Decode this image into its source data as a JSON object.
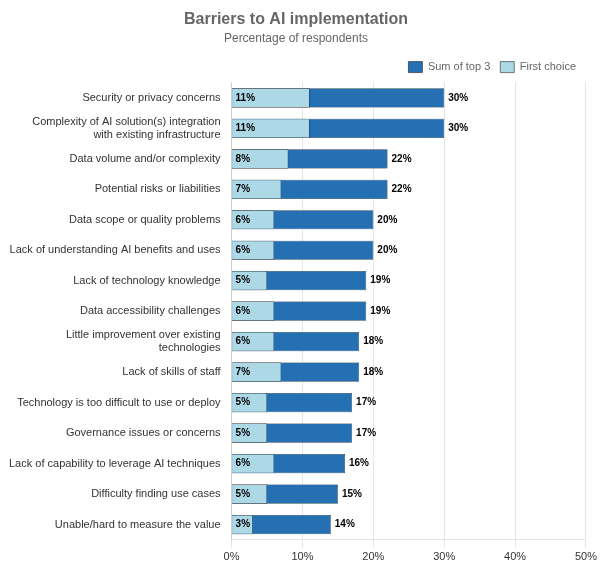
{
  "chart_data": {
    "type": "bar",
    "orientation": "horizontal",
    "title": "Barriers to AI implementation",
    "subtitle": "Percentage of respondents",
    "categories": [
      "Security or privacy concerns",
      "Complexity of AI solution(s) integration\nwith existing infrastructure",
      "Data volume and/or complexity",
      "Potential risks or liabilities",
      "Data scope or quality problems",
      "Lack of understanding AI benefits and uses",
      "Lack of technology knowledge",
      "Data accessibility challenges",
      "Little improvement over existing\ntechnologies",
      "Lack of skills of staff",
      "Technology is too difficult to use or deploy",
      "Governance issues or concerns",
      "Lack of capability to leverage AI techniques",
      "Difficulty finding use cases",
      "Unable/hard to measure the value"
    ],
    "series": [
      {
        "name": "Sum of top 3",
        "color": "#2470B3",
        "values": [
          30,
          30,
          22,
          22,
          20,
          20,
          19,
          19,
          18,
          18,
          17,
          17,
          16,
          15,
          14
        ],
        "value_labels": [
          "30%",
          "30%",
          "22%",
          "22%",
          "20%",
          "20%",
          "19%",
          "19%",
          "18%",
          "18%",
          "17%",
          "17%",
          "16%",
          "15%",
          "14%"
        ]
      },
      {
        "name": "First choice",
        "color": "#ADD8E6",
        "values": [
          11,
          11,
          8,
          7,
          6,
          6,
          5,
          6,
          6,
          7,
          5,
          5,
          6,
          5,
          3
        ],
        "value_labels": [
          "11%",
          "11%",
          "8%",
          "7%",
          "6%",
          "6%",
          "5%",
          "6%",
          "6%",
          "7%",
          "5%",
          "5%",
          "6%",
          "5%",
          "3%"
        ]
      }
    ],
    "xlim": [
      0,
      50
    ],
    "xticks": [
      {
        "value": 0,
        "label": "0%"
      },
      {
        "value": 10,
        "label": "10%"
      },
      {
        "value": 20,
        "label": "20%"
      },
      {
        "value": 30,
        "label": "30%"
      },
      {
        "value": 40,
        "label": "40%"
      },
      {
        "value": 50,
        "label": "50%"
      }
    ],
    "grid": true,
    "legend": "upper right",
    "data_labels": true
  }
}
